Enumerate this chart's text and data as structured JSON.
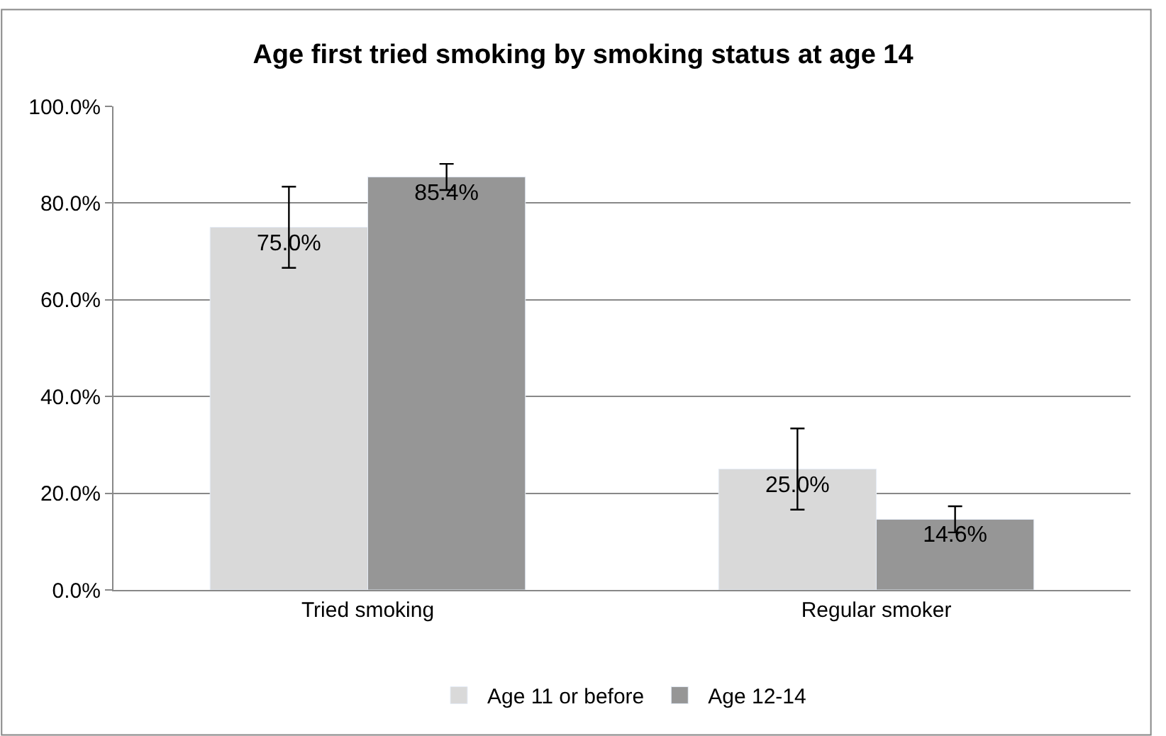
{
  "chart_data": {
    "type": "bar",
    "title": "Age first tried smoking by smoking status at age 14",
    "categories": [
      "Tried smoking",
      "Regular smoker"
    ],
    "series": [
      {
        "name": "Age 11 or before",
        "color": "#d9d9d9",
        "values": [
          75.0,
          25.0
        ],
        "errors": [
          8.4,
          8.4
        ],
        "value_labels": [
          "75.0%",
          "25.0%"
        ]
      },
      {
        "name": "Age 12-14",
        "color": "#969696",
        "values": [
          85.4,
          14.6
        ],
        "errors": [
          2.7,
          2.7
        ],
        "value_labels": [
          "85.4%",
          "14.6%"
        ]
      }
    ],
    "ylim": [
      0,
      100
    ],
    "yticks": [
      {
        "value": 0,
        "label": "0.0%"
      },
      {
        "value": 20,
        "label": "20.0%"
      },
      {
        "value": 40,
        "label": "40.0%"
      },
      {
        "value": 60,
        "label": "60.0%"
      },
      {
        "value": 80,
        "label": "80.0%"
      },
      {
        "value": 100,
        "label": "100.0%"
      }
    ],
    "grid": "y",
    "legend": "bottom"
  }
}
